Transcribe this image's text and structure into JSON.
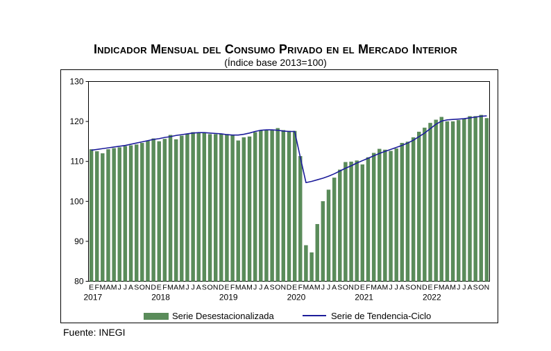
{
  "title": "Indicador Mensual del Consumo Privado en el Mercado Interior",
  "subtitle": "(Índice base 2013=100)",
  "source": "Fuente: INEGI",
  "colors": {
    "bar": "#5a8c5a",
    "bar_edge": "#3f6f3f",
    "line": "#1c1c9a"
  },
  "chart_data": {
    "type": "bar",
    "x_month_labels": [
      "E",
      "F",
      "M",
      "A",
      "M",
      "J",
      "J",
      "A",
      "S",
      "O",
      "N",
      "D",
      "E",
      "F",
      "M",
      "A",
      "M",
      "J",
      "J",
      "A",
      "S",
      "O",
      "N",
      "D",
      "E",
      "F",
      "M",
      "A",
      "M",
      "J",
      "J",
      "A",
      "S",
      "O",
      "N",
      "D",
      "E",
      "F",
      "M",
      "A",
      "M",
      "J",
      "J",
      "A",
      "S",
      "O",
      "N",
      "D",
      "E",
      "F",
      "M",
      "A",
      "M",
      "J",
      "J",
      "A",
      "S",
      "O",
      "N",
      "D",
      "E",
      "F",
      "M",
      "A",
      "M",
      "J",
      "J",
      "A",
      "S",
      "O",
      "N"
    ],
    "year_labels": [
      {
        "label": "2017",
        "month_index": 0
      },
      {
        "label": "2018",
        "month_index": 12
      },
      {
        "label": "2019",
        "month_index": 24
      },
      {
        "label": "2020",
        "month_index": 36
      },
      {
        "label": "2021",
        "month_index": 48
      },
      {
        "label": "2022",
        "month_index": 60
      }
    ],
    "yticks": [
      "80",
      "90",
      "100",
      "110",
      "120",
      "130"
    ],
    "ylim": [
      80,
      130
    ],
    "grid": false,
    "legend_position": "bottom",
    "series": [
      {
        "name": "Serie Desestacionalizada",
        "type": "bar",
        "values": [
          113.0,
          112.5,
          112.0,
          113.0,
          113.3,
          113.5,
          113.8,
          114.0,
          114.2,
          114.6,
          115.2,
          115.7,
          115.0,
          115.6,
          116.6,
          115.5,
          116.4,
          116.8,
          117.3,
          117.1,
          117.1,
          116.8,
          116.8,
          116.8,
          116.8,
          116.5,
          115.2,
          116.0,
          116.2,
          117.3,
          117.8,
          117.9,
          117.9,
          118.3,
          117.8,
          117.6,
          117.6,
          111.3,
          89.0,
          87.2,
          94.3,
          100.0,
          102.9,
          105.9,
          107.9,
          109.8,
          109.9,
          110.2,
          109.2,
          111.0,
          112.1,
          113.1,
          112.9,
          112.6,
          113.2,
          114.6,
          114.9,
          116.0,
          117.4,
          118.4,
          119.6,
          120.4,
          121.1,
          120.0,
          120.0,
          120.3,
          120.7,
          121.3,
          121.3,
          121.6,
          120.8
        ]
      },
      {
        "name": "Serie de Tendencia-Ciclo",
        "type": "line",
        "values": [
          112.8,
          113.0,
          113.2,
          113.4,
          113.6,
          113.8,
          114.0,
          114.3,
          114.6,
          114.9,
          115.2,
          115.5,
          115.7,
          116.0,
          116.2,
          116.5,
          116.7,
          116.9,
          117.1,
          117.2,
          117.2,
          117.1,
          117.0,
          116.9,
          116.7,
          116.6,
          116.6,
          116.8,
          117.1,
          117.5,
          117.8,
          117.9,
          117.9,
          117.8,
          117.6,
          117.5,
          117.5,
          111.0,
          104.7,
          105.0,
          105.4,
          105.8,
          106.3,
          106.9,
          107.6,
          108.3,
          108.9,
          109.6,
          110.2,
          110.8,
          111.4,
          112.0,
          112.5,
          113.0,
          113.5,
          114.0,
          114.6,
          115.3,
          116.2,
          117.1,
          118.2,
          119.3,
          120.1,
          120.4,
          120.5,
          120.6,
          120.7,
          120.9,
          121.1,
          121.3,
          121.4
        ]
      }
    ]
  }
}
